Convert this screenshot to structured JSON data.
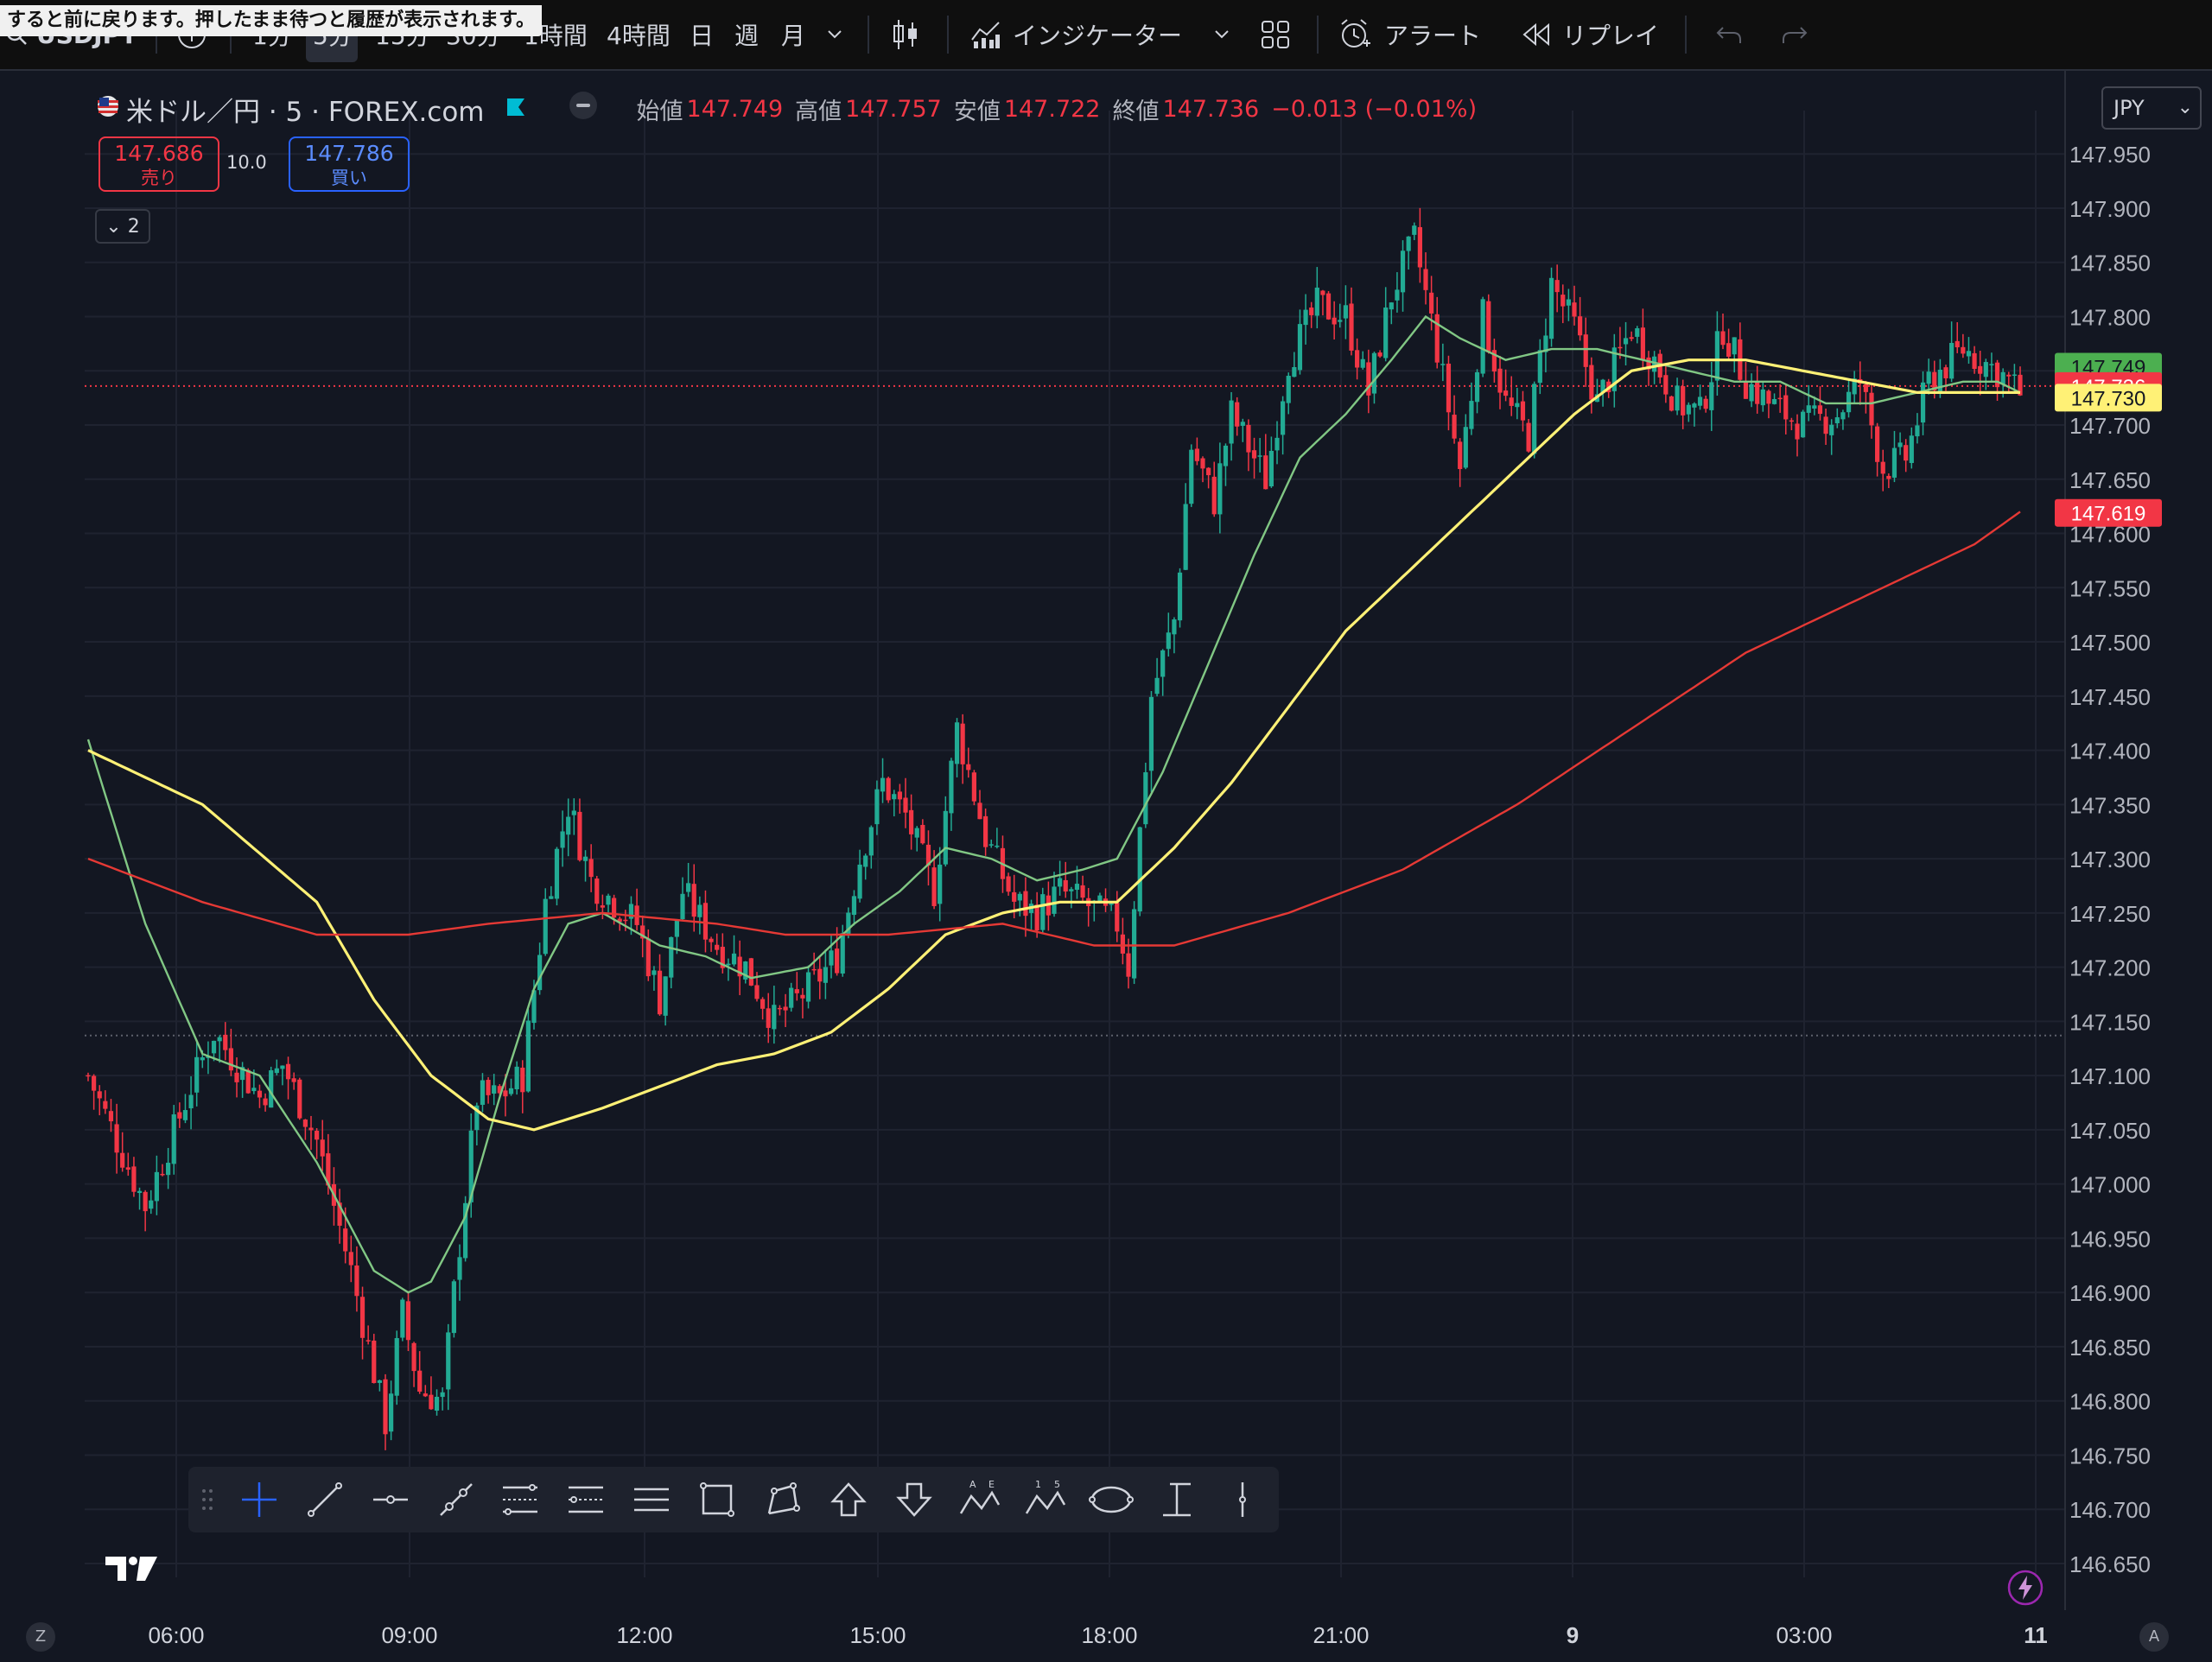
{
  "tooltip": "すると前に戻ります。押したまま待つと履歴が表示されます。",
  "toolbar": {
    "symbol": "USDJPY",
    "timeframes": [
      "1分",
      "5分",
      "15分",
      "30分",
      "1時間",
      "4時間",
      "日",
      "週",
      "月"
    ],
    "selected_timeframe": "5分",
    "indicators_label": "インジケーター",
    "alert_label": "アラート",
    "replay_label": "リプレイ"
  },
  "legend": {
    "title": "米ドル／円 · 5 · FOREX.com",
    "open_label": "始値",
    "open": "147.749",
    "high_label": "高値",
    "high": "147.757",
    "low_label": "安値",
    "low": "147.722",
    "close_label": "終値",
    "close": "147.736",
    "change": "−0.013 (−0.01%)"
  },
  "order": {
    "sell_price": "147.686",
    "sell_label": "売り",
    "buy_price": "147.786",
    "buy_label": "買い",
    "spread": "10.0"
  },
  "collapse_count": "2",
  "currency": "JPY",
  "colors": {
    "background": "#131722",
    "up": "#22ab94",
    "down": "#f23645",
    "ma_fast": "#81c784",
    "ma_mid": "#fff176",
    "ma_slow": "#e53935"
  },
  "chart_data": {
    "type": "candlestick",
    "symbol": "USDJPY",
    "interval": "5",
    "ylim": [
      146.65,
      147.99
    ],
    "yticks": [
      "147.950",
      "147.900",
      "147.850",
      "147.800",
      "147.750",
      "147.700",
      "147.650",
      "147.600",
      "147.550",
      "147.500",
      "147.450",
      "147.400",
      "147.350",
      "147.300",
      "147.250",
      "147.200",
      "147.150",
      "147.100",
      "147.050",
      "147.000",
      "146.950",
      "146.900",
      "146.850",
      "146.800",
      "146.750",
      "146.700",
      "146.650"
    ],
    "xticks": [
      "06:00",
      "09:00",
      "12:00",
      "15:00",
      "18:00",
      "21:00",
      "9",
      "03:00",
      "11"
    ],
    "price_labels": [
      {
        "value": 147.749,
        "text": "147.749",
        "color": "#4caf50",
        "text_color": "#131722"
      },
      {
        "value": 147.736,
        "text": "147.736",
        "color": "#f23645",
        "text_color": "#ffffff"
      },
      {
        "value": 147.73,
        "text": "147.730",
        "color": "#fff176",
        "text_color": "#131722"
      },
      {
        "value": 147.619,
        "text": "147.619",
        "color": "#f23645",
        "text_color": "#ffffff"
      }
    ],
    "current_price": 147.736,
    "reference_price": 147.137,
    "anchors": [
      [
        0,
        147.1
      ],
      [
        10,
        146.98
      ],
      [
        18,
        147.09
      ],
      [
        22,
        147.14
      ],
      [
        30,
        147.08
      ],
      [
        34,
        147.11
      ],
      [
        40,
        147.04
      ],
      [
        46,
        146.92
      ],
      [
        52,
        146.78
      ],
      [
        55,
        146.88
      ],
      [
        58,
        146.81
      ],
      [
        62,
        146.8
      ],
      [
        64,
        146.9
      ],
      [
        68,
        147.08
      ],
      [
        72,
        147.08
      ],
      [
        76,
        147.1
      ],
      [
        80,
        147.26
      ],
      [
        84,
        147.35
      ],
      [
        88,
        147.28
      ],
      [
        92,
        147.26
      ],
      [
        96,
        147.24
      ],
      [
        100,
        147.17
      ],
      [
        104,
        147.27
      ],
      [
        110,
        147.22
      ],
      [
        115,
        147.2
      ],
      [
        120,
        147.15
      ],
      [
        126,
        147.18
      ],
      [
        131,
        147.21
      ],
      [
        135,
        147.3
      ],
      [
        139,
        147.37
      ],
      [
        143,
        147.34
      ],
      [
        148,
        147.27
      ],
      [
        152,
        147.42
      ],
      [
        157,
        147.32
      ],
      [
        162,
        147.26
      ],
      [
        166,
        147.25
      ],
      [
        170,
        147.27
      ],
      [
        174,
        147.26
      ],
      [
        180,
        147.24
      ],
      [
        182,
        147.2
      ],
      [
        186,
        147.45
      ],
      [
        190,
        147.52
      ],
      [
        193,
        147.68
      ],
      [
        197,
        147.63
      ],
      [
        200,
        147.71
      ],
      [
        206,
        147.65
      ],
      [
        210,
        147.76
      ],
      [
        215,
        147.81
      ],
      [
        220,
        147.8
      ],
      [
        224,
        147.73
      ],
      [
        228,
        147.82
      ],
      [
        232,
        147.87
      ],
      [
        236,
        147.77
      ],
      [
        240,
        147.66
      ],
      [
        244,
        147.8
      ],
      [
        248,
        147.72
      ],
      [
        252,
        147.69
      ],
      [
        256,
        147.83
      ],
      [
        260,
        147.79
      ],
      [
        264,
        147.72
      ],
      [
        270,
        147.79
      ],
      [
        274,
        147.76
      ],
      [
        278,
        147.72
      ],
      [
        282,
        147.71
      ],
      [
        286,
        147.79
      ],
      [
        290,
        147.74
      ],
      [
        294,
        147.72
      ],
      [
        300,
        147.7
      ],
      [
        306,
        147.71
      ],
      [
        310,
        147.74
      ],
      [
        314,
        147.66
      ],
      [
        318,
        147.67
      ],
      [
        322,
        147.74
      ],
      [
        328,
        147.77
      ],
      [
        334,
        147.75
      ],
      [
        338,
        147.73
      ]
    ],
    "series": [
      {
        "name": "",
        "kind": "moving_average",
        "color": "#81c784",
        "points": [
          [
            0,
            147.41
          ],
          [
            10,
            147.24
          ],
          [
            20,
            147.12
          ],
          [
            30,
            147.1
          ],
          [
            40,
            147.02
          ],
          [
            50,
            146.92
          ],
          [
            56,
            146.9
          ],
          [
            60,
            146.91
          ],
          [
            66,
            146.97
          ],
          [
            72,
            147.08
          ],
          [
            78,
            147.18
          ],
          [
            84,
            147.24
          ],
          [
            90,
            147.25
          ],
          [
            100,
            147.22
          ],
          [
            108,
            147.21
          ],
          [
            116,
            147.19
          ],
          [
            126,
            147.2
          ],
          [
            134,
            147.24
          ],
          [
            142,
            147.27
          ],
          [
            150,
            147.31
          ],
          [
            158,
            147.3
          ],
          [
            166,
            147.28
          ],
          [
            174,
            147.29
          ],
          [
            180,
            147.3
          ],
          [
            188,
            147.38
          ],
          [
            196,
            147.48
          ],
          [
            204,
            147.58
          ],
          [
            212,
            147.67
          ],
          [
            220,
            147.71
          ],
          [
            228,
            147.76
          ],
          [
            234,
            147.8
          ],
          [
            240,
            147.78
          ],
          [
            248,
            147.76
          ],
          [
            256,
            147.77
          ],
          [
            264,
            147.77
          ],
          [
            272,
            147.76
          ],
          [
            280,
            147.75
          ],
          [
            288,
            147.74
          ],
          [
            296,
            147.74
          ],
          [
            304,
            147.72
          ],
          [
            312,
            147.72
          ],
          [
            320,
            147.73
          ],
          [
            328,
            147.74
          ],
          [
            334,
            147.74
          ],
          [
            338,
            147.73
          ]
        ]
      },
      {
        "name": "",
        "kind": "moving_average",
        "color": "#fff176",
        "points": [
          [
            0,
            147.4
          ],
          [
            20,
            147.35
          ],
          [
            40,
            147.26
          ],
          [
            50,
            147.17
          ],
          [
            60,
            147.1
          ],
          [
            70,
            147.06
          ],
          [
            78,
            147.05
          ],
          [
            90,
            147.07
          ],
          [
            100,
            147.09
          ],
          [
            110,
            147.11
          ],
          [
            120,
            147.12
          ],
          [
            130,
            147.14
          ],
          [
            140,
            147.18
          ],
          [
            150,
            147.23
          ],
          [
            160,
            147.25
          ],
          [
            170,
            147.26
          ],
          [
            180,
            147.26
          ],
          [
            190,
            147.31
          ],
          [
            200,
            147.37
          ],
          [
            210,
            147.44
          ],
          [
            220,
            147.51
          ],
          [
            230,
            147.56
          ],
          [
            240,
            147.61
          ],
          [
            250,
            147.66
          ],
          [
            260,
            147.71
          ],
          [
            270,
            147.75
          ],
          [
            280,
            147.76
          ],
          [
            290,
            147.76
          ],
          [
            300,
            147.75
          ],
          [
            310,
            147.74
          ],
          [
            320,
            147.73
          ],
          [
            330,
            147.73
          ],
          [
            338,
            147.73
          ]
        ]
      },
      {
        "name": "",
        "kind": "moving_average",
        "color": "#e53935",
        "points": [
          [
            0,
            147.3
          ],
          [
            20,
            147.26
          ],
          [
            40,
            147.23
          ],
          [
            56,
            147.23
          ],
          [
            70,
            147.24
          ],
          [
            90,
            147.25
          ],
          [
            110,
            147.24
          ],
          [
            122,
            147.23
          ],
          [
            140,
            147.23
          ],
          [
            160,
            147.24
          ],
          [
            176,
            147.22
          ],
          [
            190,
            147.22
          ],
          [
            210,
            147.25
          ],
          [
            230,
            147.29
          ],
          [
            250,
            147.35
          ],
          [
            270,
            147.42
          ],
          [
            290,
            147.49
          ],
          [
            310,
            147.54
          ],
          [
            330,
            147.59
          ],
          [
            338,
            147.62
          ]
        ]
      }
    ]
  },
  "drawing_tools": [
    "crosshair",
    "trend-line",
    "horizontal-ray",
    "info-line",
    "parallel-channel",
    "regression-trend",
    "horizontal-lines",
    "rectangle",
    "polyline",
    "arrow-up",
    "arrow-down",
    "abcd-pattern",
    "elliott-wave",
    "ellipse",
    "price-range",
    "vertical-line"
  ],
  "corner_buttons": {
    "left": "Z",
    "right": "A"
  }
}
